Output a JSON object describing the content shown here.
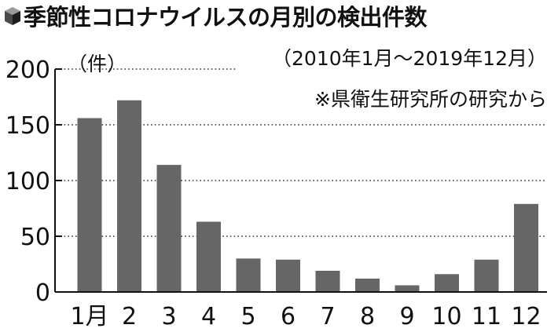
{
  "chart_data": {
    "type": "bar",
    "title": "季節性コロナウイルスの月別の検出件数",
    "unit_label": "（件）",
    "period_note": "（2010年1月～2019年12月）",
    "source_note": "※県衛生研究所の研究から",
    "categories": [
      "1月",
      "2",
      "3",
      "4",
      "5",
      "6",
      "7",
      "8",
      "9",
      "10",
      "11",
      "12"
    ],
    "values": [
      156,
      172,
      114,
      63,
      30,
      29,
      19,
      12,
      6,
      16,
      29,
      79
    ],
    "yticks": [
      0,
      50,
      100,
      150,
      200
    ],
    "ylim": [
      0,
      200
    ],
    "grid": "dotted horizontal",
    "colors": {
      "bar": "#666666",
      "axis": "#111111",
      "grid": "#333333"
    }
  }
}
